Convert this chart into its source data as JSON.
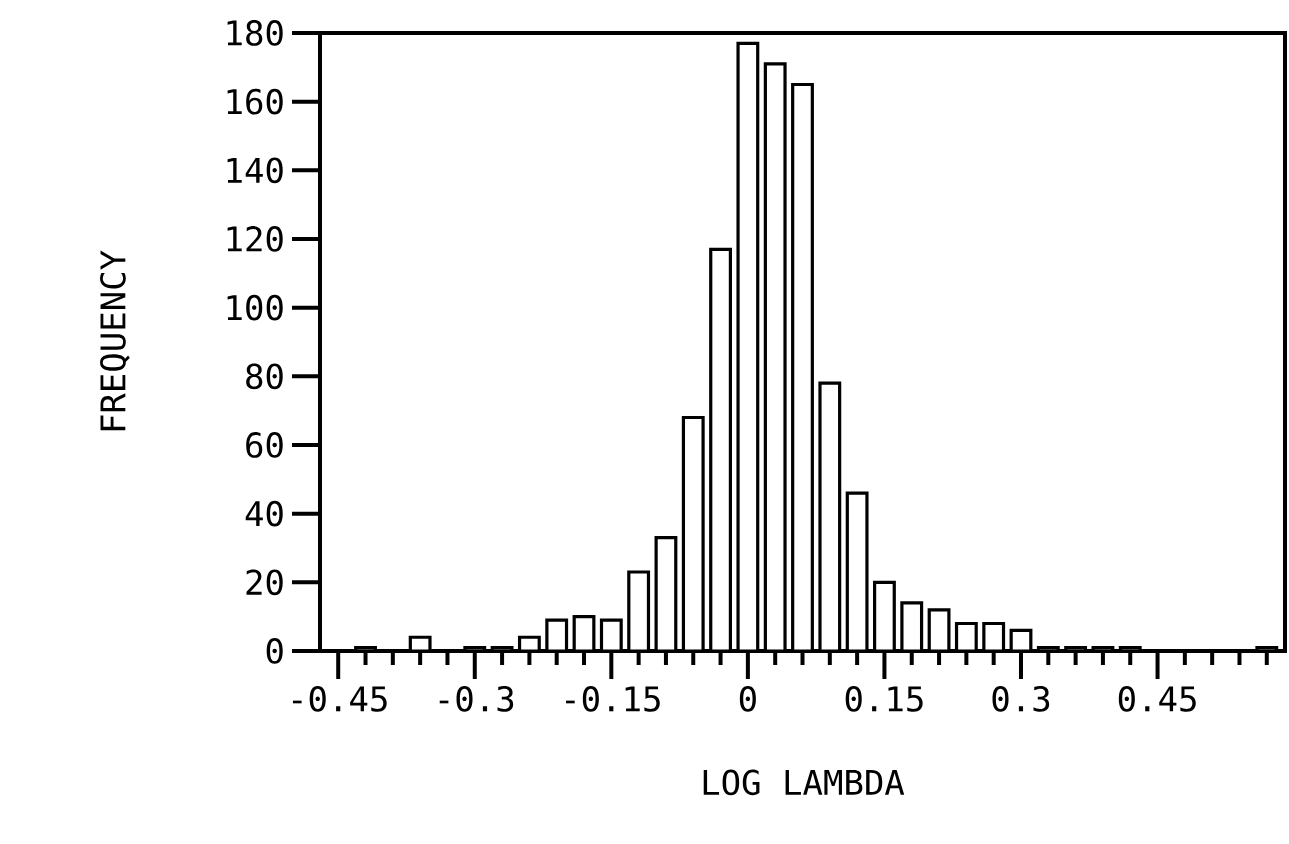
{
  "chart_data": {
    "type": "histogram",
    "xlabel": "LOG LAMBDA",
    "ylabel": "FREQUENCY",
    "bins": [
      -0.435,
      -0.405,
      -0.375,
      -0.345,
      -0.315,
      -0.285,
      -0.255,
      -0.225,
      -0.195,
      -0.165,
      -0.135,
      -0.105,
      -0.075,
      -0.045,
      -0.015,
      0.015,
      0.045,
      0.075,
      0.105,
      0.135,
      0.165,
      0.195,
      0.225,
      0.255,
      0.285,
      0.315,
      0.345,
      0.375,
      0.405,
      0.435,
      0.465,
      0.495,
      0.525,
      0.555,
      0.585
    ],
    "values": [
      1,
      0,
      4,
      0,
      1,
      1,
      4,
      9,
      10,
      9,
      23,
      33,
      68,
      117,
      177,
      171,
      165,
      78,
      46,
      20,
      14,
      12,
      8,
      8,
      6,
      1,
      1,
      1,
      1,
      0,
      0,
      0,
      0,
      1
    ],
    "color": "#000000",
    "xlim": [
      -0.47,
      0.59
    ],
    "xticks": [
      {
        "value": -0.45,
        "label": "-0.45"
      },
      {
        "value": -0.42,
        "label": null
      },
      {
        "value": -0.39,
        "label": null
      },
      {
        "value": -0.36,
        "label": null
      },
      {
        "value": -0.33,
        "label": null
      },
      {
        "value": -0.3,
        "label": "-0.3"
      },
      {
        "value": -0.27,
        "label": null
      },
      {
        "value": -0.24,
        "label": null
      },
      {
        "value": -0.21,
        "label": null
      },
      {
        "value": -0.18,
        "label": null
      },
      {
        "value": -0.15,
        "label": "-0.15"
      },
      {
        "value": -0.12,
        "label": null
      },
      {
        "value": -0.09,
        "label": null
      },
      {
        "value": -0.06,
        "label": null
      },
      {
        "value": -0.03,
        "label": null
      },
      {
        "value": 0,
        "label": "0"
      },
      {
        "value": 0.03,
        "label": null
      },
      {
        "value": 0.06,
        "label": null
      },
      {
        "value": 0.09,
        "label": null
      },
      {
        "value": 0.12,
        "label": null
      },
      {
        "value": 0.15,
        "label": "0.15"
      },
      {
        "value": 0.18,
        "label": null
      },
      {
        "value": 0.21,
        "label": null
      },
      {
        "value": 0.24,
        "label": null
      },
      {
        "value": 0.27,
        "label": null
      },
      {
        "value": 0.3,
        "label": "0.3"
      },
      {
        "value": 0.33,
        "label": null
      },
      {
        "value": 0.36,
        "label": null
      },
      {
        "value": 0.39,
        "label": null
      },
      {
        "value": 0.42,
        "label": null
      },
      {
        "value": 0.45,
        "label": "0.45"
      },
      {
        "value": 0.48,
        "label": null
      },
      {
        "value": 0.51,
        "label": null
      },
      {
        "value": 0.54,
        "label": null
      },
      {
        "value": 0.57,
        "label": null
      }
    ],
    "ylim": [
      0,
      180
    ],
    "yticks": [
      0,
      20,
      40,
      60,
      80,
      100,
      120,
      140,
      160,
      180
    ],
    "grid": false
  }
}
